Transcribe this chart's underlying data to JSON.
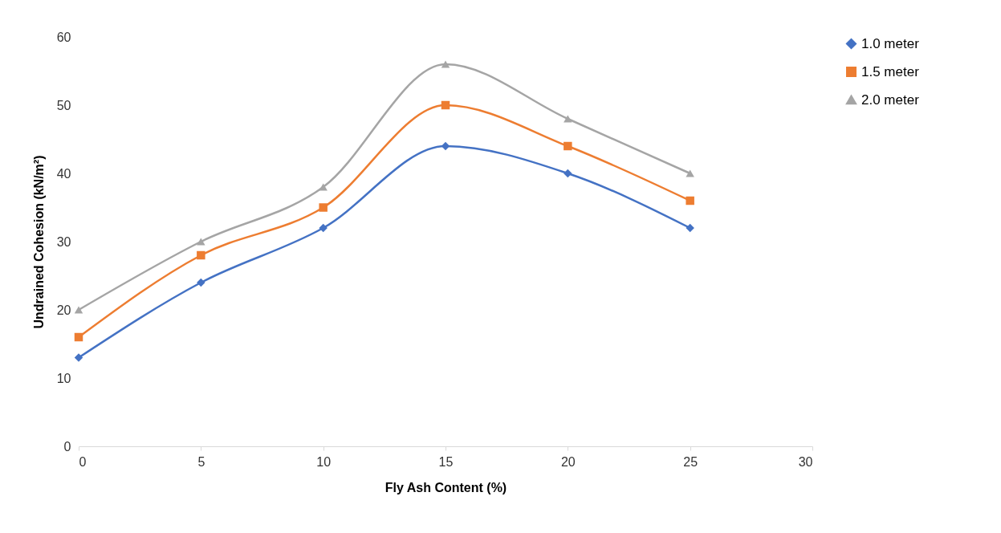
{
  "chart_data": {
    "type": "line",
    "xlabel": "Fly Ash Content (%)",
    "ylabel": "Undrained Cohesion (kN/m²)",
    "x": [
      0,
      5,
      10,
      15,
      20,
      25
    ],
    "series": [
      {
        "name": "1.0 meter",
        "color": "#4472c4",
        "marker": "diamond",
        "values": [
          13,
          24,
          32,
          44,
          40,
          32
        ]
      },
      {
        "name": "1.5 meter",
        "color": "#ed7d31",
        "marker": "square",
        "values": [
          16,
          28,
          35,
          50,
          44,
          36
        ]
      },
      {
        "name": "2.0 meter",
        "color": "#a5a5a5",
        "marker": "triangle",
        "values": [
          20,
          30,
          38,
          56,
          48,
          40
        ]
      }
    ],
    "xlim": [
      0,
      30
    ],
    "xticks": [
      0,
      5,
      10,
      15,
      20,
      25,
      30
    ],
    "ylim": [
      0,
      60
    ],
    "yticks": [
      0,
      10,
      20,
      30,
      40,
      50,
      60
    ],
    "grid": false,
    "legend": "right",
    "line_style": "solid"
  }
}
